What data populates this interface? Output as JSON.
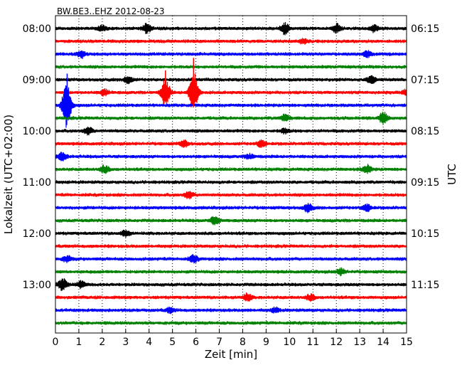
{
  "chart_data": {
    "type": "line",
    "title": "BW.BE3..EHZ 2012-08-23",
    "xlabel": "Zeit  [min]",
    "ylabel_left": "Lokalzeit (UTC+02:00)",
    "ylabel_right": "UTC",
    "xlim": [
      0,
      15
    ],
    "x_ticks": [
      "0",
      "1",
      "2",
      "3",
      "4",
      "5",
      "6",
      "7",
      "8",
      "9",
      "10",
      "11",
      "12",
      "13",
      "14",
      "15"
    ],
    "left_ticks": [
      "08:00",
      "09:00",
      "10:00",
      "11:00",
      "12:00",
      "13:00"
    ],
    "right_ticks": [
      "06:15",
      "07:15",
      "08:15",
      "09:15",
      "10:15",
      "11:15"
    ],
    "trace_interval_min": 15,
    "trace_count": 24,
    "trace_colors": [
      "#000000",
      "#ff0000",
      "#0000ff",
      "#008000"
    ],
    "grid_vertical": true,
    "events": [
      {
        "trace": 0,
        "minute": 2.0,
        "amp": 0.45
      },
      {
        "trace": 0,
        "minute": 3.9,
        "amp": 0.8
      },
      {
        "trace": 0,
        "minute": 9.8,
        "amp": 0.9
      },
      {
        "trace": 0,
        "minute": 12.0,
        "amp": 0.7
      },
      {
        "trace": 0,
        "minute": 13.6,
        "amp": 0.5
      },
      {
        "trace": 1,
        "minute": 10.6,
        "amp": 0.35
      },
      {
        "trace": 2,
        "minute": 1.1,
        "amp": 0.6
      },
      {
        "trace": 2,
        "minute": 13.3,
        "amp": 0.5
      },
      {
        "trace": 4,
        "minute": 3.1,
        "amp": 0.6
      },
      {
        "trace": 4,
        "minute": 13.5,
        "amp": 0.6
      },
      {
        "trace": 5,
        "minute": 2.1,
        "amp": 0.5
      },
      {
        "trace": 5,
        "minute": 4.7,
        "amp": 2.3
      },
      {
        "trace": 5,
        "minute": 5.9,
        "amp": 3.6
      },
      {
        "trace": 5,
        "minute": 15.0,
        "amp": 0.5
      },
      {
        "trace": 6,
        "minute": 0.4,
        "amp": 0.9
      },
      {
        "trace": 6,
        "minute": 0.5,
        "amp": 3.3
      },
      {
        "trace": 7,
        "minute": 9.8,
        "amp": 0.6
      },
      {
        "trace": 7,
        "minute": 14.0,
        "amp": 1.0
      },
      {
        "trace": 8,
        "minute": 1.4,
        "amp": 0.6
      },
      {
        "trace": 8,
        "minute": 9.8,
        "amp": 0.4
      },
      {
        "trace": 9,
        "minute": 5.5,
        "amp": 0.5
      },
      {
        "trace": 9,
        "minute": 8.8,
        "amp": 0.6
      },
      {
        "trace": 10,
        "minute": 0.3,
        "amp": 0.7
      },
      {
        "trace": 10,
        "minute": 8.3,
        "amp": 0.4
      },
      {
        "trace": 11,
        "minute": 2.1,
        "amp": 0.6
      },
      {
        "trace": 11,
        "minute": 13.3,
        "amp": 0.7
      },
      {
        "trace": 13,
        "minute": 5.7,
        "amp": 0.6
      },
      {
        "trace": 14,
        "minute": 10.8,
        "amp": 0.7
      },
      {
        "trace": 14,
        "minute": 13.3,
        "amp": 0.6
      },
      {
        "trace": 15,
        "minute": 6.8,
        "amp": 0.7
      },
      {
        "trace": 16,
        "minute": 3.0,
        "amp": 0.5
      },
      {
        "trace": 18,
        "minute": 0.5,
        "amp": 0.5
      },
      {
        "trace": 18,
        "minute": 5.9,
        "amp": 0.6
      },
      {
        "trace": 19,
        "minute": 12.2,
        "amp": 0.5
      },
      {
        "trace": 20,
        "minute": 0.3,
        "amp": 1.0
      },
      {
        "trace": 20,
        "minute": 1.1,
        "amp": 0.6
      },
      {
        "trace": 21,
        "minute": 8.2,
        "amp": 0.6
      },
      {
        "trace": 21,
        "minute": 10.9,
        "amp": 0.5
      },
      {
        "trace": 22,
        "minute": 4.9,
        "amp": 0.4
      },
      {
        "trace": 22,
        "minute": 9.4,
        "amp": 0.4
      }
    ]
  }
}
